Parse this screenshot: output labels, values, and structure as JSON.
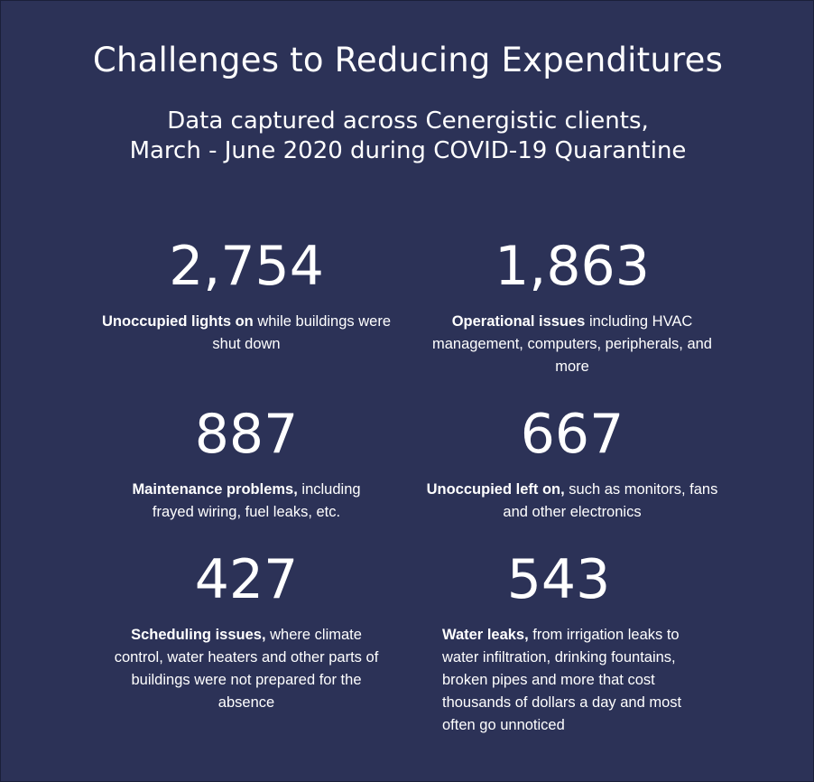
{
  "title": "Challenges to Reducing Expenditures",
  "subtitle": {
    "line1": "Data captured across Cenergistic clients,",
    "line2": "March - June 2020 during COVID-19 Quarantine"
  },
  "stats": [
    {
      "value": "2,754",
      "bold": "Unoccupied lights on",
      "text": " while buildings were shut down"
    },
    {
      "value": "1,863",
      "bold": "Operational issues",
      "text": " including HVAC management, computers, peripherals, and more"
    },
    {
      "value": "887",
      "bold": "Maintenance problems,",
      "text": " including frayed wiring, fuel leaks, etc."
    },
    {
      "value": "667",
      "bold": "Unoccupied left on,",
      "text": " such as monitors, fans and other electronics"
    },
    {
      "value": "427",
      "bold": "Scheduling issues,",
      "text": " where climate control, water heaters and other parts of buildings were not prepared for the absence"
    },
    {
      "value": "543",
      "bold": "Water leaks,",
      "text": " from irrigation leaks to water infiltration, drinking fountains, broken pipes and more that cost thousands of dollars a day and most often go unnoticed"
    }
  ],
  "colors": {
    "background": "#2c3257",
    "text": "#ffffff"
  }
}
